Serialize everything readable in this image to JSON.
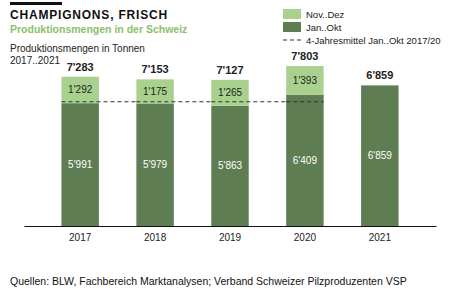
{
  "chart_data": {
    "type": "bar",
    "stacked": true,
    "title": "CHAMPIGNONS, FRISCH",
    "subtitle": "Produktionsmengen in der Schweiz",
    "y_label": "Produktionsmengen in Tonnen",
    "x_label": "2017..2021",
    "source": "Quellen: BLW, Fachbereich Marktanalysen; Verband Schweizer Pilzproduzenten VSP",
    "categories": [
      "2017",
      "2018",
      "2019",
      "2020",
      "2021"
    ],
    "ylim": [
      0,
      8000
    ],
    "tick_labels": "x",
    "data_labels": true,
    "legend": "upper right",
    "series": [
      {
        "name": "Jan..Okt",
        "color": "#5e7d52",
        "values": [
          5991,
          5979,
          5863,
          6409,
          6859
        ],
        "value_labels": [
          "5'991",
          "5'979",
          "5'863",
          "6'409",
          "6'859"
        ]
      },
      {
        "name": "Nov..Dez",
        "color": "#a9d18e",
        "values": [
          1292,
          1175,
          1265,
          1393,
          null
        ],
        "value_labels": [
          "1'292",
          "1'175",
          "1'265",
          "1'393",
          null
        ]
      },
      {
        "name": "4-Jahresmittel Jan..Okt 2017/20",
        "type": "line",
        "line_style": "dashed",
        "color": "#333333",
        "values": [
          6060.5,
          6060.5,
          6060.5,
          6060.5,
          null
        ]
      }
    ],
    "totals": {
      "values": [
        7283,
        7153,
        7127,
        7803,
        6859
      ],
      "value_labels": [
        "7'283",
        "7'153",
        "7'127",
        "7'803",
        "6'859"
      ]
    }
  }
}
